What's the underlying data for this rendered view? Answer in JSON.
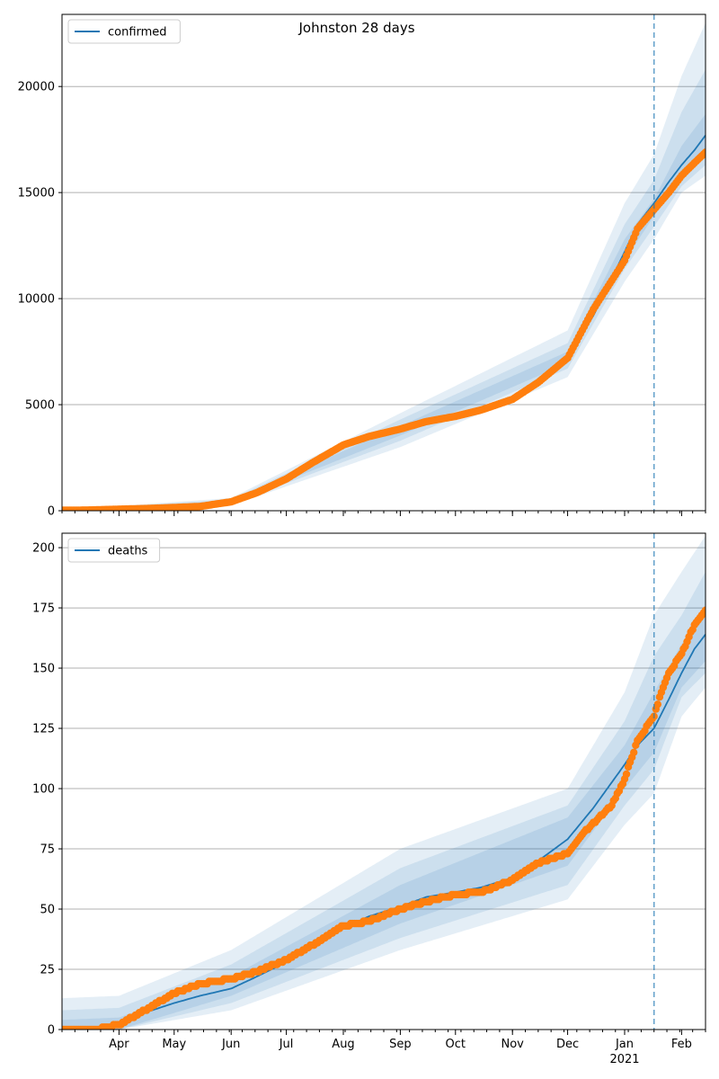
{
  "figure_title": "Johnston 28 days",
  "colors": {
    "model_line": "#1f77b4",
    "observed": "#ff7f0e",
    "band": "#1f77b4",
    "grid": "#b0b0b0",
    "forecast_line": "#1f77b4"
  },
  "x_axis": {
    "start": "2020-03-01",
    "end": "2021-02-14",
    "month_labels": [
      {
        "date": "2020-04-01",
        "label": "Apr"
      },
      {
        "date": "2020-05-01",
        "label": "May"
      },
      {
        "date": "2020-06-01",
        "label": "Jun"
      },
      {
        "date": "2020-07-01",
        "label": "Jul"
      },
      {
        "date": "2020-08-01",
        "label": "Aug"
      },
      {
        "date": "2020-09-01",
        "label": "Sep"
      },
      {
        "date": "2020-10-01",
        "label": "Oct"
      },
      {
        "date": "2020-11-01",
        "label": "Nov"
      },
      {
        "date": "2020-12-01",
        "label": "Dec"
      },
      {
        "date": "2021-01-01",
        "label": "Jan"
      },
      {
        "date": "2021-02-01",
        "label": "Feb"
      }
    ],
    "year_label": {
      "date": "2021-01-01",
      "label": "2021"
    },
    "forecast_start": "2021-01-17"
  },
  "chart_data": [
    {
      "type": "line",
      "legend": "confirmed",
      "legend_position": "upper-left",
      "grid": "horizontal",
      "ylim": [
        0,
        23400
      ],
      "yticks": [
        0,
        5000,
        10000,
        15000,
        20000
      ],
      "series": [
        {
          "name": "confirmed",
          "role": "model",
          "x": [
            "2020-03-01",
            "2020-03-15",
            "2020-04-01",
            "2020-04-15",
            "2020-05-01",
            "2020-05-15",
            "2020-06-01",
            "2020-06-15",
            "2020-07-01",
            "2020-07-15",
            "2020-08-01",
            "2020-08-15",
            "2020-09-01",
            "2020-09-15",
            "2020-10-01",
            "2020-10-15",
            "2020-11-01",
            "2020-11-15",
            "2020-12-01",
            "2020-12-15",
            "2021-01-01",
            "2021-01-08",
            "2021-01-17",
            "2021-01-25",
            "2021-02-01",
            "2021-02-08",
            "2021-02-14"
          ],
          "y": [
            0,
            10,
            60,
            120,
            160,
            220,
            420,
            800,
            1450,
            2200,
            3050,
            3450,
            3800,
            4150,
            4450,
            4700,
            5300,
            6100,
            7200,
            9200,
            12200,
            13500,
            14500,
            15500,
            16300,
            17000,
            17700
          ]
        },
        {
          "name": "observed",
          "role": "observed",
          "x": [
            "2020-03-01",
            "2020-03-15",
            "2020-04-01",
            "2020-04-15",
            "2020-05-01",
            "2020-05-15",
            "2020-06-01",
            "2020-06-15",
            "2020-07-01",
            "2020-07-15",
            "2020-08-01",
            "2020-08-15",
            "2020-09-01",
            "2020-09-15",
            "2020-10-01",
            "2020-10-15",
            "2020-11-01",
            "2020-11-15",
            "2020-12-01",
            "2020-12-15",
            "2021-01-01",
            "2021-01-08",
            "2021-01-17",
            "2021-01-25",
            "2021-02-01",
            "2021-02-08",
            "2021-02-14"
          ],
          "y": [
            20,
            30,
            70,
            100,
            150,
            200,
            420,
            850,
            1500,
            2250,
            3100,
            3500,
            3850,
            4200,
            4450,
            4750,
            5250,
            6050,
            7200,
            9500,
            11800,
            13300,
            14200,
            15000,
            15800,
            16400,
            16900
          ]
        }
      ],
      "bands": [
        {
          "level": "outer",
          "x": [
            "2020-03-01",
            "2020-06-01",
            "2020-09-01",
            "2020-12-01",
            "2021-01-01",
            "2021-01-17",
            "2021-02-01",
            "2021-02-14"
          ],
          "upper": [
            30,
            600,
            4600,
            8500,
            14500,
            16800,
            20500,
            23000
          ],
          "lower": [
            0,
            250,
            3000,
            6300,
            10800,
            12800,
            15000,
            15800
          ]
        },
        {
          "level": "middle",
          "x": [
            "2020-03-01",
            "2020-06-01",
            "2020-09-01",
            "2020-12-01",
            "2021-01-01",
            "2021-01-17",
            "2021-02-01",
            "2021-02-14"
          ],
          "upper": [
            20,
            530,
            4300,
            7900,
            13500,
            15600,
            18800,
            20800
          ],
          "lower": [
            0,
            320,
            3300,
            6700,
            11400,
            13400,
            15300,
            16300
          ]
        },
        {
          "level": "inner",
          "x": [
            "2020-03-01",
            "2020-06-01",
            "2020-09-01",
            "2020-12-01",
            "2021-01-01",
            "2021-01-17",
            "2021-02-01",
            "2021-02-14"
          ],
          "upper": [
            10,
            470,
            4000,
            7500,
            12800,
            14700,
            17200,
            18700
          ],
          "lower": [
            0,
            370,
            3550,
            6950,
            11800,
            13900,
            15600,
            16900
          ]
        }
      ]
    },
    {
      "type": "line",
      "legend": "deaths",
      "legend_position": "upper-left",
      "grid": "horizontal",
      "ylim": [
        0,
        206
      ],
      "yticks": [
        0,
        25,
        50,
        75,
        100,
        125,
        150,
        175,
        200
      ],
      "series": [
        {
          "name": "deaths",
          "role": "model",
          "x": [
            "2020-03-01",
            "2020-03-15",
            "2020-04-01",
            "2020-04-15",
            "2020-05-01",
            "2020-05-15",
            "2020-06-01",
            "2020-06-15",
            "2020-07-01",
            "2020-07-15",
            "2020-08-01",
            "2020-08-15",
            "2020-09-01",
            "2020-09-15",
            "2020-10-01",
            "2020-10-15",
            "2020-11-01",
            "2020-11-15",
            "2020-12-01",
            "2020-12-15",
            "2021-01-01",
            "2021-01-08",
            "2021-01-17",
            "2021-01-25",
            "2021-02-01",
            "2021-02-08",
            "2021-02-14"
          ],
          "y": [
            0,
            0,
            2,
            7,
            11,
            14,
            17,
            22,
            28,
            35,
            42,
            47,
            51,
            55,
            57,
            59,
            63,
            70,
            79,
            92,
            110,
            118,
            125,
            137,
            148,
            158,
            164
          ]
        },
        {
          "name": "observed",
          "role": "observed",
          "x": [
            "2020-03-01",
            "2020-03-20",
            "2020-04-01",
            "2020-04-15",
            "2020-05-01",
            "2020-05-15",
            "2020-06-01",
            "2020-06-15",
            "2020-07-01",
            "2020-07-15",
            "2020-08-01",
            "2020-08-15",
            "2020-09-01",
            "2020-09-15",
            "2020-10-01",
            "2020-10-15",
            "2020-11-01",
            "2020-11-15",
            "2020-12-01",
            "2020-12-10",
            "2020-12-25",
            "2021-01-01",
            "2021-01-08",
            "2021-01-17",
            "2021-01-21",
            "2021-01-25",
            "2021-02-01",
            "2021-02-08",
            "2021-02-14"
          ],
          "y": [
            0,
            0,
            2,
            8,
            15,
            19,
            21,
            24,
            29,
            35,
            43,
            45,
            50,
            53,
            56,
            57,
            62,
            69,
            73,
            82,
            93,
            104,
            120,
            130,
            140,
            148,
            156,
            168,
            174
          ]
        }
      ],
      "bands": [
        {
          "level": "outer",
          "x": [
            "2020-03-01",
            "2020-04-01",
            "2020-06-01",
            "2020-09-01",
            "2020-12-01",
            "2021-01-01",
            "2021-01-17",
            "2021-02-01",
            "2021-02-14"
          ],
          "upper": [
            13,
            14,
            33,
            75,
            100,
            140,
            172,
            190,
            205
          ],
          "lower": [
            0,
            0,
            8,
            33,
            54,
            85,
            98,
            130,
            142
          ]
        },
        {
          "level": "middle",
          "x": [
            "2020-03-01",
            "2020-04-01",
            "2020-06-01",
            "2020-09-01",
            "2020-12-01",
            "2021-01-01",
            "2021-01-17",
            "2021-02-01",
            "2021-02-14"
          ],
          "upper": [
            8,
            9,
            27,
            67,
            93,
            128,
            155,
            172,
            190
          ],
          "lower": [
            0,
            0,
            11,
            38,
            60,
            93,
            108,
            138,
            148
          ]
        },
        {
          "level": "inner",
          "x": [
            "2020-03-01",
            "2020-04-01",
            "2020-06-01",
            "2020-09-01",
            "2020-12-01",
            "2021-01-01",
            "2021-01-17",
            "2021-02-01",
            "2021-02-14"
          ],
          "upper": [
            4,
            5,
            22,
            60,
            88,
            118,
            140,
            160,
            175
          ],
          "lower": [
            0,
            0,
            14,
            44,
            68,
            100,
            115,
            142,
            153
          ]
        }
      ]
    }
  ]
}
